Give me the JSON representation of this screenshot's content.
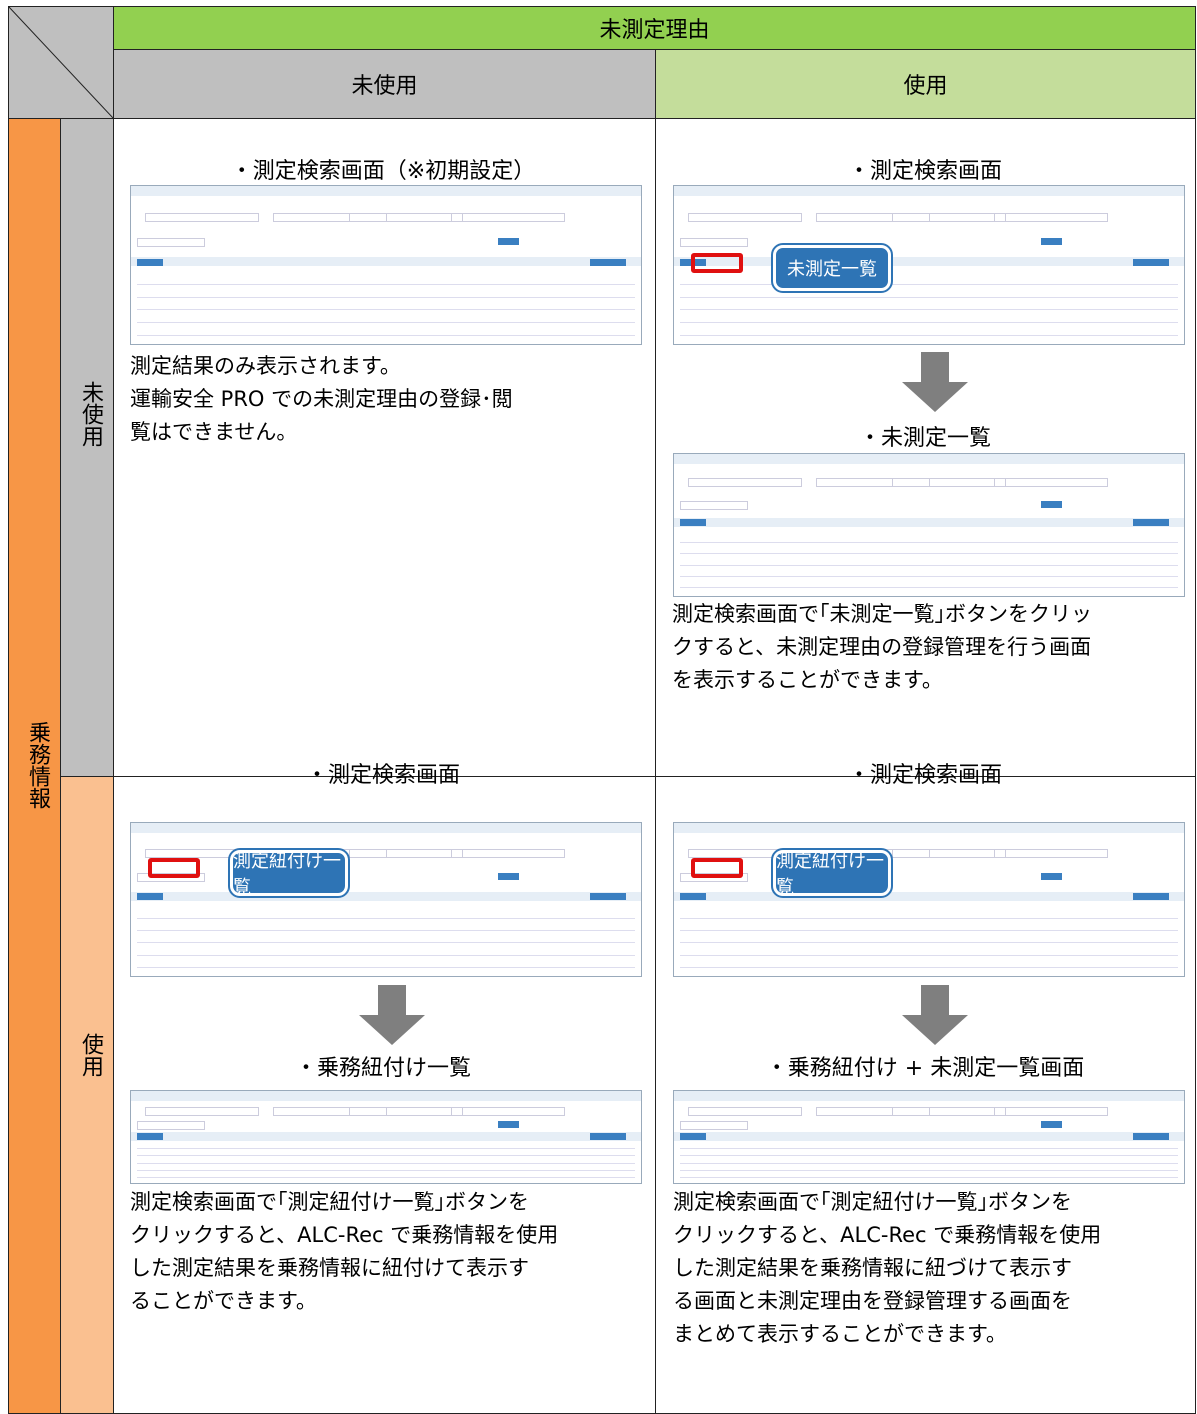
{
  "header": {
    "group": "未測定理由",
    "col_unused": "未使用",
    "col_used": "使用"
  },
  "row_group": "乗務情報",
  "rows": [
    {
      "label": "未使用",
      "cells": [
        {
          "title": "・測定検索画面（※初期設定）",
          "text": [
            "測定結果のみ表示されます。",
            "運輸安全 PRO での未測定理由の登録･閲",
            "覧はできません。"
          ]
        },
        {
          "title": "・測定検索画面",
          "callout": "未測定一覧",
          "title2": "・未測定一覧",
          "text": [
            "測定検索画面で｢未測定一覧｣ボタンをクリッ",
            "クすると、未測定理由の登録管理を行う画面",
            "を表示することができます。"
          ]
        }
      ]
    },
    {
      "label": "使用",
      "cells": [
        {
          "title": "・測定検索画面",
          "callout": "測定紐付け一覧",
          "title2": "・乗務紐付け一覧",
          "text": [
            "測定検索画面で｢測定紐付け一覧｣ボタンを",
            "クリックすると、ALC-Rec で乗務情報を使用",
            "した測定結果を乗務情報に紐付けて表示す",
            "ることができます。"
          ]
        },
        {
          "title": "・測定検索画面",
          "callout": "測定紐付け一覧",
          "title2": "・乗務紐付け + 未測定一覧画面",
          "text": [
            "測定検索画面で｢測定紐付け一覧｣ボタンを",
            "クリックすると、ALC-Rec で乗務情報を使用",
            "した測定結果を乗務情報に紐づけて表示す",
            "る画面と未測定理由を登録管理する画面を",
            "まとめて表示することができます。"
          ]
        }
      ]
    }
  ]
}
